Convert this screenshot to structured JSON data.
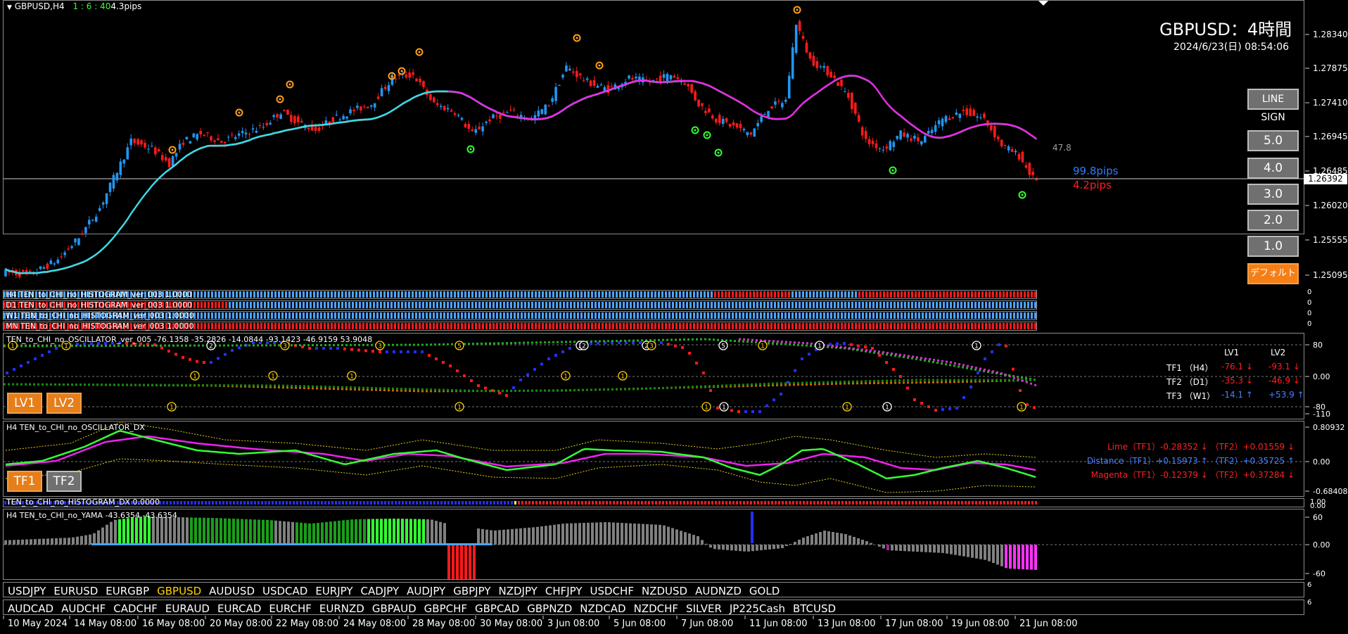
{
  "chart": {
    "symbol_tf": "GBPUSD,H4",
    "top_info": "1 : 6 : 40",
    "spread": "4.3pips",
    "title": "GBPUSD：4時間",
    "datetime": "2024/6/23(日) 08:54:06",
    "current_price": "1.26392",
    "price_ticks": [
      "1.28340",
      "1.27875",
      "1.27410",
      "1.26945",
      "1.26485",
      "1.26020",
      "1.25555",
      "1.25095"
    ],
    "ma_value": "47.8",
    "pips_up": "99.8pips",
    "pips_down": "4.2pips"
  },
  "buttons": {
    "line_sign": "LINE SIGN",
    "levels": [
      "5.0",
      "4.0",
      "3.0",
      "2.0",
      "1.0"
    ],
    "default": "デフォルト"
  },
  "histograms": [
    {
      "label": "H4  TEN_to_CHI_no_HISTOGRAM_ver_003 1.0000",
      "value": "0"
    },
    {
      "label": "D1  TEN_to_CHI_no_HISTOGRAM_ver_003 1.0000",
      "value": "0"
    },
    {
      "label": "W1  TEN_to_CHI_no_HISTOGRAM_ver_003 1.0000",
      "value": "0"
    },
    {
      "label": "MN  TEN_to_CHI_no_HISTOGRAM_ver_003 1.0000",
      "value": "0"
    }
  ],
  "oscillator": {
    "label": "TEN_to_CHI_no_OSCILLATOR_ver_005 -76.1358 -35.2826 -14.0844 -93.1423 -46.9159 53.9048",
    "ticks": [
      "80",
      "0.00",
      "-80",
      "-110"
    ],
    "header_lv1": "LV1",
    "header_lv2": "LV2",
    "rows": [
      {
        "name": "TF1 （H4）",
        "lv1": "-76.1 ↓",
        "lv2": "-93.1 ↓",
        "color": "#ff2020"
      },
      {
        "name": "TF2 （D1）",
        "lv1": "-35.3 ↓",
        "lv2": "-46.9 ↓",
        "color": "#ff2020"
      },
      {
        "name": "TF3 （W1）",
        "lv1": "-14.1 ↑",
        "lv2": "+53.9 ↑",
        "color": "#4a7dff"
      }
    ],
    "btn_lv1": "LV1",
    "btn_lv2": "LV2"
  },
  "oscillator_dx": {
    "label": "H4  TEN_to_CHI_no_OSCILLATOR_DX",
    "ticks": [
      "0.80932",
      "0.00",
      "-0.68408"
    ],
    "lines": [
      {
        "text": "Lime（TF1）-0.28352 ↓ （TF2）+0.01559 ↓",
        "color": "#ff2020"
      },
      {
        "text": "Distance（TF1）+0.15973 ↑ （TF2）+0.35725 ↑",
        "color": "#4a7dff"
      },
      {
        "text": "Magenta（TF1）-0.12379 ↓ （TF2）+0.37284 ↓",
        "color": "#ff2020"
      }
    ],
    "btn_tf1": "TF1",
    "btn_tf2": "TF2"
  },
  "histogram_dx": {
    "label": "TEN_to_CHI_no_HISTOGRAM_DX 0.0000",
    "ticks": [
      "1.00",
      "0.00"
    ]
  },
  "yama": {
    "label": "H4  TEN_to_CHI_no_YAMA -43.6354 -43.6354",
    "ticks": [
      "60",
      "0.00",
      "-60"
    ]
  },
  "symbols_row1": [
    "USDJPY",
    "EURUSD",
    "EURGBP",
    "GBPUSD",
    "AUDUSD",
    "USDCAD",
    "EURJPY",
    "CADJPY",
    "AUDJPY",
    "GBPJPY",
    "NZDJPY",
    "CHFJPY",
    "USDCHF",
    "NZDUSD",
    "AUDNZD",
    "GOLD"
  ],
  "symbols_row2": [
    "AUDCAD",
    "AUDCHF",
    "CADCHF",
    "EURAUD",
    "EURCAD",
    "EURCHF",
    "EURNZD",
    "GBPAUD",
    "GBPCHF",
    "GBPCAD",
    "GBPNZD",
    "NZDCAD",
    "NZDCHF",
    "SILVER",
    "JP225Cash",
    "BTCUSD"
  ],
  "active_symbol": "GBPUSD",
  "symbol_row_values": [
    "6",
    "6"
  ],
  "dates": [
    "10 May 2024",
    "14 May 08:00",
    "16 May 08:00",
    "20 May 08:00",
    "22 May 08:00",
    "24 May 08:00",
    "28 May 08:00",
    "30 May 08:00",
    "3 Jun 08:00",
    "5 Jun 08:00",
    "7 Jun 08:00",
    "11 Jun 08:00",
    "13 Jun 08:00",
    "17 Jun 08:00",
    "19 Jun 08:00",
    "21 Jun 08:00"
  ],
  "colors": {
    "bull": "#2196f3",
    "bear": "#ff1a1a",
    "ma_cyan": "#33e0ee",
    "ma_magenta": "#ee22ee",
    "lime": "#33ff33",
    "accent_orange": "#f57f17"
  }
}
